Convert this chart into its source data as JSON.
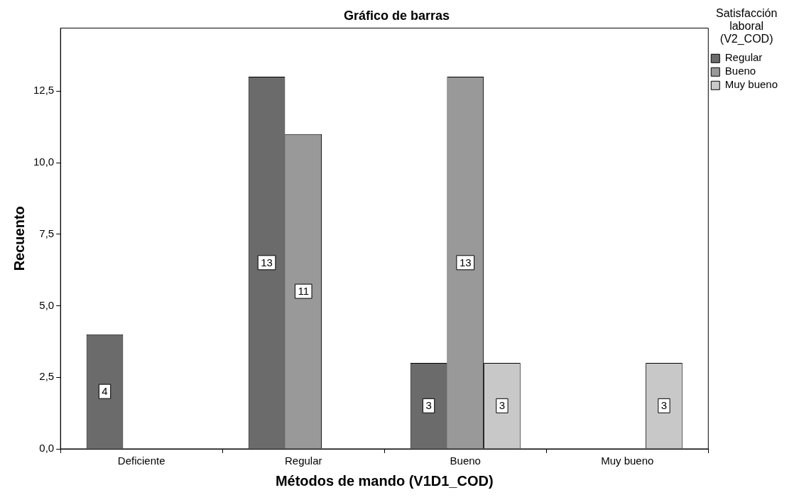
{
  "chart_data": {
    "type": "bar",
    "title": "Gráfico de barras",
    "xlabel": "Métodos de mando (V1D1_COD)",
    "ylabel": "Recuento",
    "legend_title": "Satisfacción laboral (V2_COD)",
    "categories": [
      "Deficiente",
      "Regular",
      "Bueno",
      "Muy bueno"
    ],
    "series": [
      {
        "name": "Regular",
        "color": "#6b6b6b",
        "values": [
          4,
          13,
          3,
          null
        ]
      },
      {
        "name": "Bueno",
        "color": "#999999",
        "values": [
          null,
          11,
          13,
          null
        ]
      },
      {
        "name": "Muy bueno",
        "color": "#c8c8c8",
        "values": [
          null,
          null,
          3,
          3
        ]
      }
    ],
    "ylim": [
      0,
      14.7
    ],
    "yticks": [
      {
        "value": 0,
        "label": "0,0"
      },
      {
        "value": 2.5,
        "label": "2,5"
      },
      {
        "value": 5,
        "label": "5,0"
      },
      {
        "value": 7.5,
        "label": "7,5"
      },
      {
        "value": 10,
        "label": "10,0"
      },
      {
        "value": 12.5,
        "label": "12,5"
      }
    ],
    "grid": false,
    "legend": "right",
    "data_labels": true
  }
}
